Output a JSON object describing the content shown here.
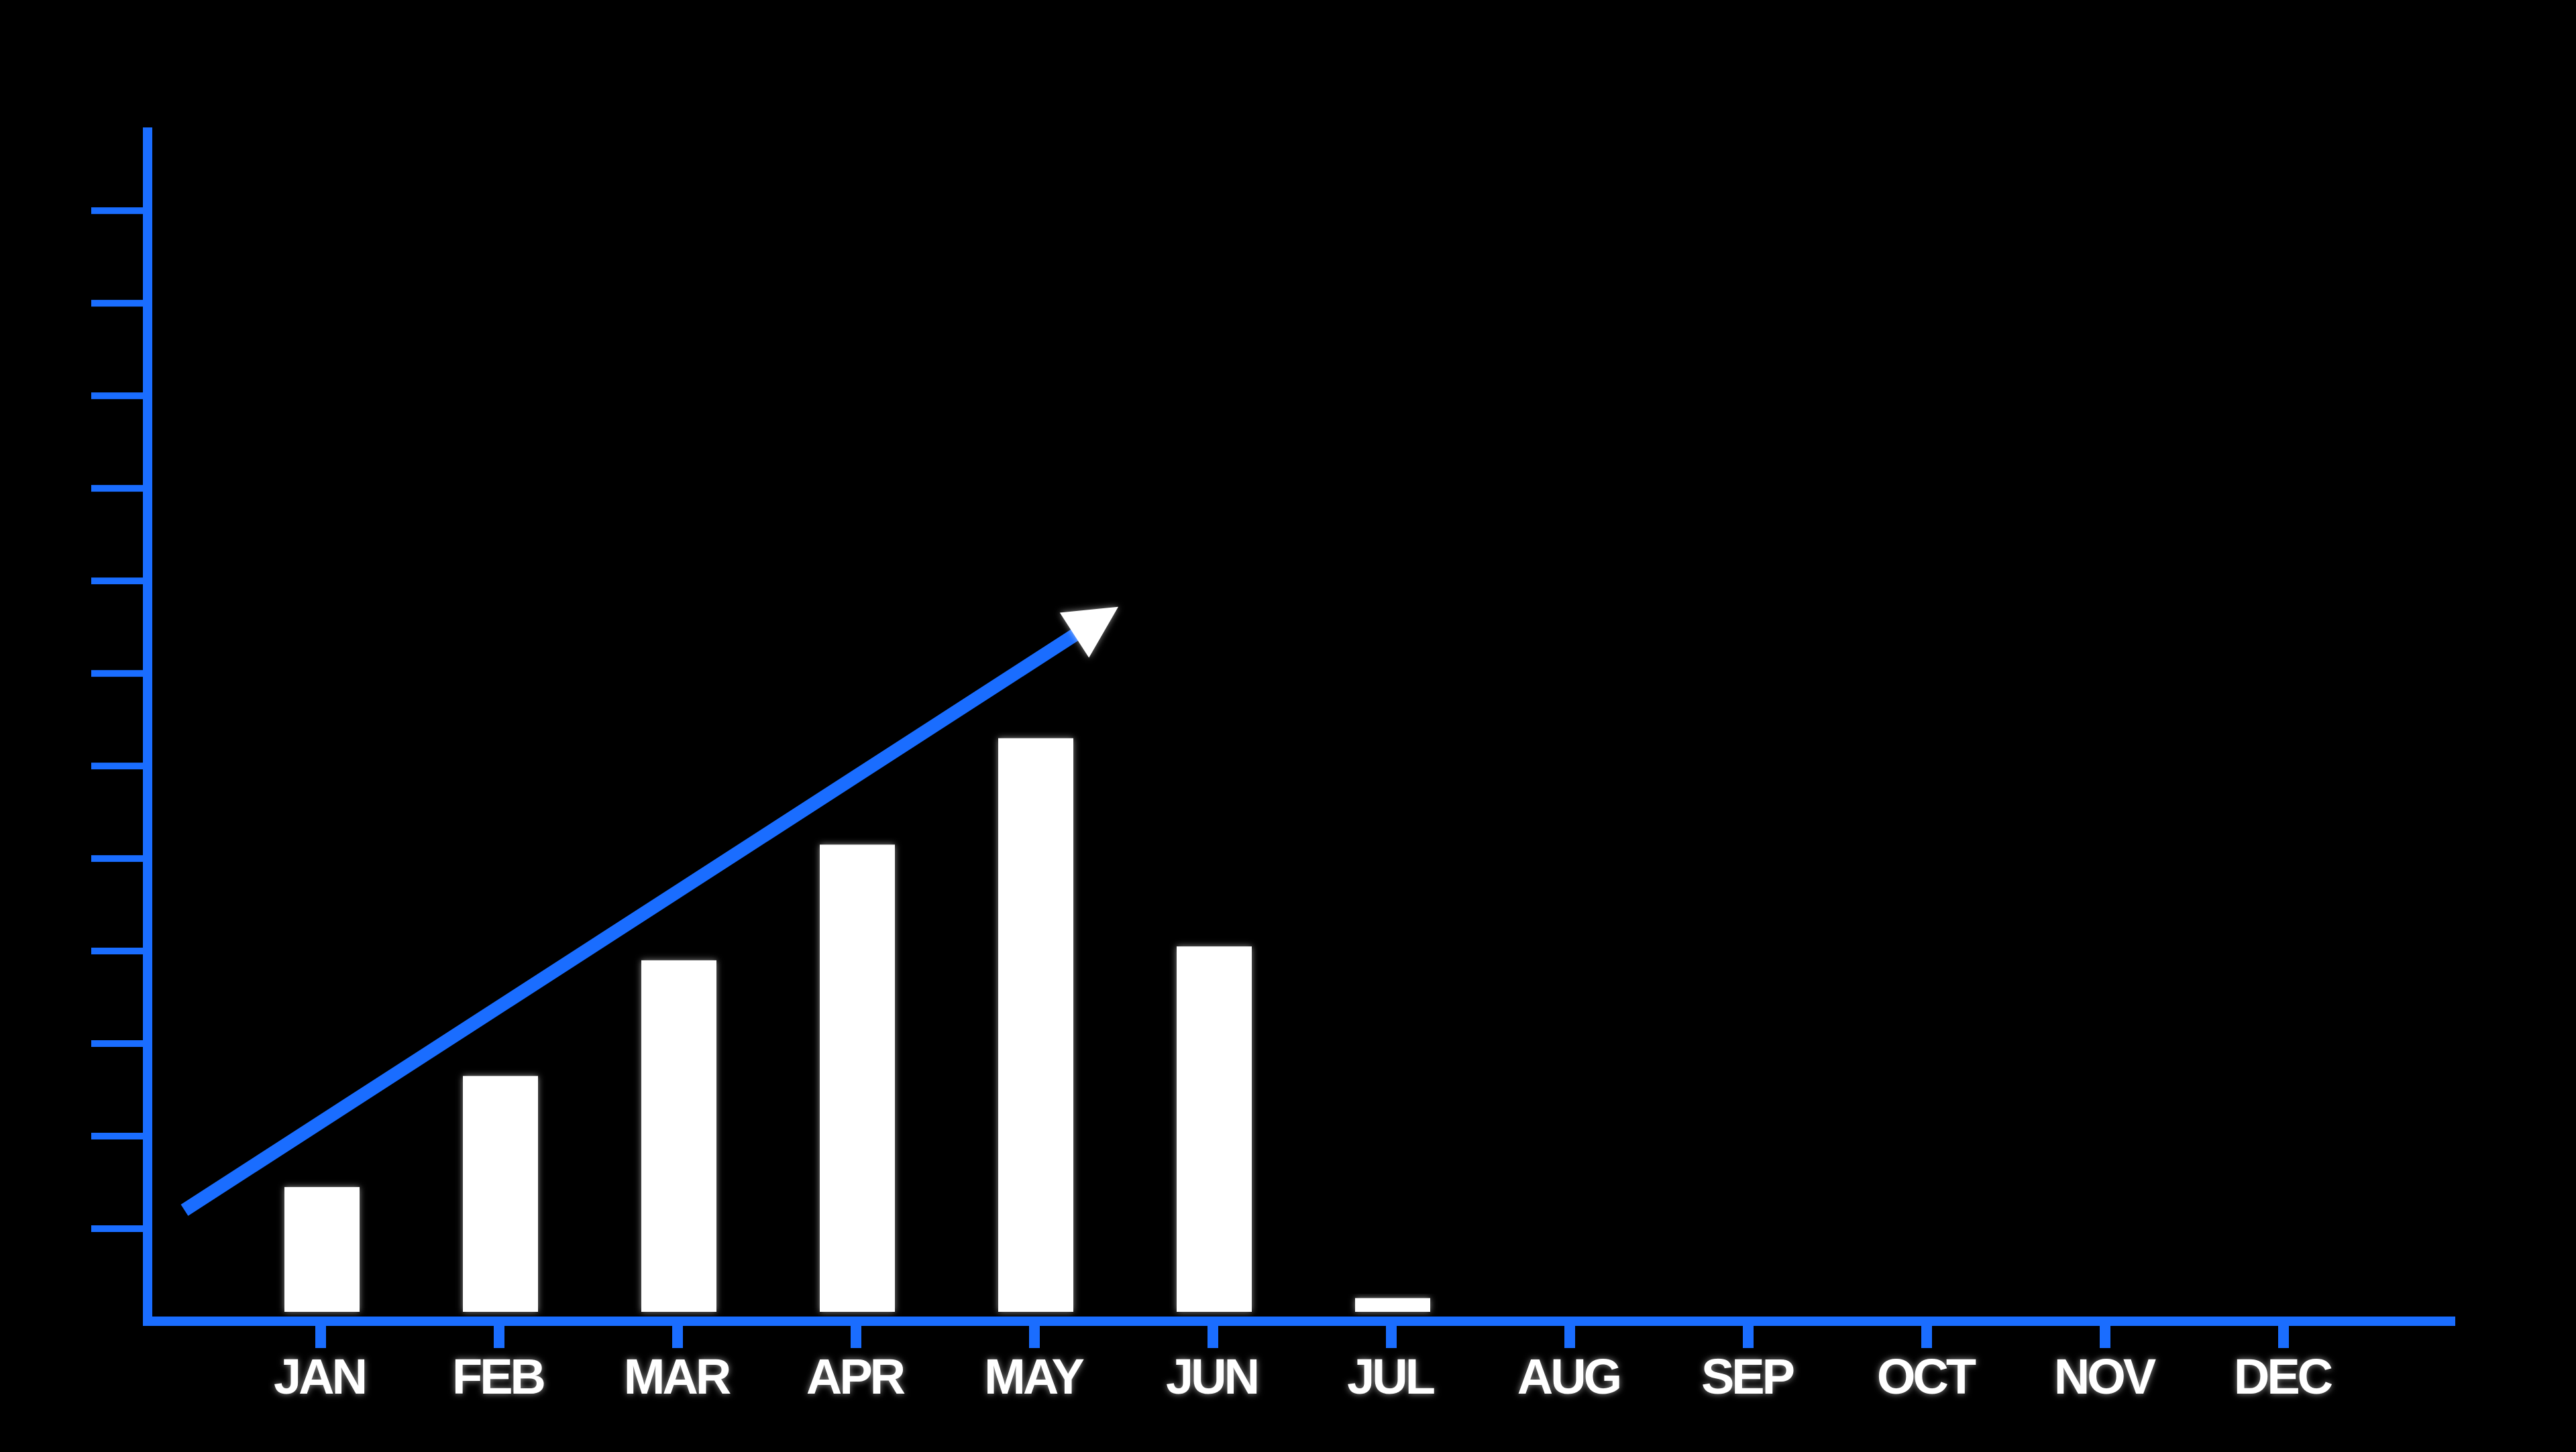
{
  "chart_data": {
    "type": "bar",
    "title": "",
    "xlabel": "",
    "ylabel": "",
    "categories": [
      "JAN",
      "FEB",
      "MAR",
      "APR",
      "MAY",
      "JUN",
      "JUL",
      "AUG",
      "SEP",
      "OCT",
      "NOV",
      "DEC"
    ],
    "values": [
      1.45,
      2.65,
      3.9,
      5.15,
      6.3,
      4.05,
      0.25,
      0,
      0,
      0,
      0,
      0
    ],
    "ylim": [
      0,
      12.9
    ],
    "y_tick_values": [
      1,
      2,
      3,
      4,
      5,
      6,
      7,
      8,
      9,
      10,
      11,
      12
    ],
    "y_tick_labels_shown": false,
    "grid": false,
    "legend": "none",
    "trend_arrow": {
      "from": {
        "category": "JAN",
        "value": 1.2
      },
      "to": {
        "category": "MAY",
        "value": 7.5
      },
      "direction": "up"
    }
  },
  "colors": {
    "background": "#000000",
    "axis": "#1a6dff",
    "bar": "#ffffff",
    "label": "#ffffff",
    "arrow_line": "#1a6dff",
    "arrow_head": "#ffffff"
  }
}
